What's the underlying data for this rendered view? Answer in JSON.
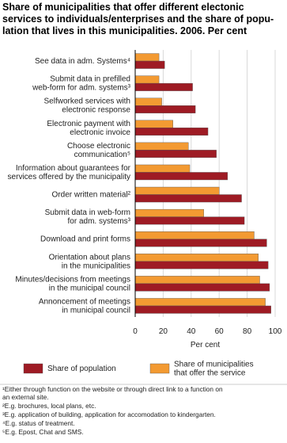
{
  "chart_data": {
    "type": "hbar",
    "title": "Share of municipalities that offer different electonic\nservices to individuals/enterprises and the share of popu-\nlation that lives in this municipalities. 2006. Per cent",
    "categories": [
      "See data in adm. Systems⁴",
      "Submit data in prefilled\nweb-form for adm. systems³",
      "Selfworked services with\nelectronic response",
      "Electronic payment with\nelectronic invoice",
      "Choose electronic\ncommunication⁵",
      "Information about guarantees for\nservices offered by the municipality",
      "Order written material²",
      "Submit data in web-form\nfor adm. systems³",
      "Download and print forms",
      "Orientation about plans\nin the municipalities",
      "Minutes/decisions from meetings\nin the municipal council",
      "Annoncement of meetings\nin municipal council"
    ],
    "series": [
      {
        "name": "Share of municipalities\nthat offer the service",
        "color": "#f39a32",
        "values": [
          17,
          17,
          19,
          27,
          38,
          39,
          60,
          49,
          85,
          88,
          89,
          93
        ]
      },
      {
        "name": "Share of population",
        "color": "#9e1b24",
        "values": [
          21,
          41,
          43,
          52,
          58,
          66,
          76,
          78,
          94,
          95,
          96,
          97
        ]
      }
    ],
    "xlim": [
      0,
      100
    ],
    "xticks": [
      0,
      20,
      40,
      60,
      80,
      100
    ],
    "xlabel": "Per cent",
    "grid": true,
    "notes": [
      "¹Either through function on the website or through direct link to a function on\nan external site.",
      "²E.g. brochures, local plans, etc.",
      "³E.g. application of building, application for accomodation to kindergarten.",
      "⁴E.g. status of treatment.",
      "⁵E.g. Epost, Chat and SMS."
    ]
  }
}
